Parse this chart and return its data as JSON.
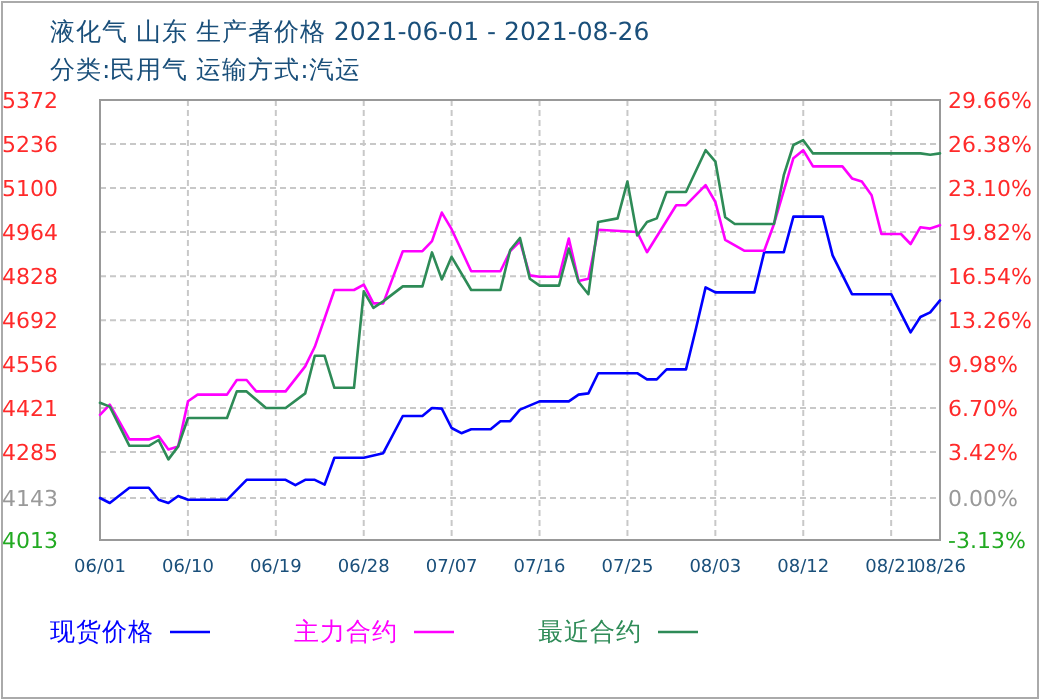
{
  "chart_data": {
    "type": "line",
    "title": "液化气 山东 生产者价格 2021-06-01 - 2021-08-26",
    "subtitle": "分类:民用气 运输方式:汽运",
    "xlim": [
      "2021-06-01",
      "2021-08-26"
    ],
    "xticks": [
      {
        "value": "2021-06-01",
        "label": "06/01"
      },
      {
        "value": "2021-06-10",
        "label": "06/10"
      },
      {
        "value": "2021-06-19",
        "label": "06/19"
      },
      {
        "value": "2021-06-28",
        "label": "06/28"
      },
      {
        "value": "2021-07-07",
        "label": "07/07"
      },
      {
        "value": "2021-07-16",
        "label": "07/16"
      },
      {
        "value": "2021-07-25",
        "label": "07/25"
      },
      {
        "value": "2021-08-03",
        "label": "08/03"
      },
      {
        "value": "2021-08-12",
        "label": "08/12"
      },
      {
        "value": "2021-08-21",
        "label": "08/21"
      },
      {
        "value": "2021-08-26",
        "label": "08/26"
      }
    ],
    "ylim": [
      4013,
      5372
    ],
    "yticks": [
      4013,
      4143,
      4285,
      4421,
      4556,
      4692,
      4828,
      4964,
      5100,
      5236,
      5372
    ],
    "y2lim": [
      -3.13,
      29.66
    ],
    "y2ticks": [
      {
        "value": -3.13,
        "label": "-3.13%"
      },
      {
        "value": 0,
        "label": "0.00%"
      },
      {
        "value": 3.42,
        "label": "3.42%"
      },
      {
        "value": 6.7,
        "label": "6.70%"
      },
      {
        "value": 9.98,
        "label": "9.98%"
      },
      {
        "value": 13.26,
        "label": "13.26%"
      },
      {
        "value": 16.54,
        "label": "16.54%"
      },
      {
        "value": 19.82,
        "label": "19.82%"
      },
      {
        "value": 23.1,
        "label": "23.10%"
      },
      {
        "value": 26.38,
        "label": "26.38%"
      },
      {
        "value": 29.66,
        "label": "29.66%"
      }
    ],
    "grid": true,
    "legend": "bottom",
    "line_style": "solid",
    "marker": "none",
    "series": [
      {
        "name": "现货价格",
        "color": "#0000ff",
        "x": [
          "2021-06-01",
          "2021-06-02",
          "2021-06-04",
          "2021-06-06",
          "2021-06-07",
          "2021-06-08",
          "2021-06-09",
          "2021-06-10",
          "2021-06-14",
          "2021-06-16",
          "2021-06-20",
          "2021-06-21",
          "2021-06-22",
          "2021-06-23",
          "2021-06-24",
          "2021-06-25",
          "2021-06-28",
          "2021-06-30",
          "2021-07-02",
          "2021-07-04",
          "2021-07-05",
          "2021-07-06",
          "2021-07-07",
          "2021-07-08",
          "2021-07-09",
          "2021-07-11",
          "2021-07-12",
          "2021-07-13",
          "2021-07-14",
          "2021-07-16",
          "2021-07-19",
          "2021-07-20",
          "2021-07-21",
          "2021-07-22",
          "2021-07-26",
          "2021-07-27",
          "2021-07-28",
          "2021-07-29",
          "2021-07-31",
          "2021-08-01",
          "2021-08-02",
          "2021-08-03",
          "2021-08-07",
          "2021-08-08",
          "2021-08-10",
          "2021-08-11",
          "2021-08-14",
          "2021-08-15",
          "2021-08-17",
          "2021-08-21",
          "2021-08-23",
          "2021-08-24",
          "2021-08-25",
          "2021-08-26"
        ],
        "values": [
          4143,
          4127,
          4174,
          4174,
          4137,
          4127,
          4149,
          4137,
          4137,
          4199,
          4199,
          4182,
          4199,
          4199,
          4184,
          4267,
          4267,
          4281,
          4396,
          4396,
          4421,
          4419,
          4359,
          4343,
          4355,
          4355,
          4380,
          4380,
          4416,
          4441,
          4441,
          4462,
          4466,
          4528,
          4528,
          4509,
          4509,
          4540,
          4540,
          4664,
          4793,
          4778,
          4778,
          4902,
          4902,
          5012,
          5012,
          4892,
          4772,
          4772,
          4654,
          4702,
          4716,
          4753
        ]
      },
      {
        "name": "主力合约",
        "color": "#ff00ff",
        "x": [
          "2021-06-01",
          "2021-06-02",
          "2021-06-04",
          "2021-06-06",
          "2021-06-07",
          "2021-06-08",
          "2021-06-09",
          "2021-06-10",
          "2021-06-11",
          "2021-06-14",
          "2021-06-15",
          "2021-06-16",
          "2021-06-17",
          "2021-06-20",
          "2021-06-22",
          "2021-06-23",
          "2021-06-25",
          "2021-06-27",
          "2021-06-28",
          "2021-06-29",
          "2021-06-30",
          "2021-07-02",
          "2021-07-04",
          "2021-07-05",
          "2021-07-06",
          "2021-07-07",
          "2021-07-09",
          "2021-07-12",
          "2021-07-13",
          "2021-07-14",
          "2021-07-15",
          "2021-07-16",
          "2021-07-18",
          "2021-07-19",
          "2021-07-20",
          "2021-07-21",
          "2021-07-22",
          "2021-07-26",
          "2021-07-27",
          "2021-07-30",
          "2021-07-31",
          "2021-08-02",
          "2021-08-03",
          "2021-08-04",
          "2021-08-06",
          "2021-08-08",
          "2021-08-09",
          "2021-08-11",
          "2021-08-12",
          "2021-08-13",
          "2021-08-16",
          "2021-08-17",
          "2021-08-18",
          "2021-08-19",
          "2021-08-20",
          "2021-08-22",
          "2021-08-23",
          "2021-08-24",
          "2021-08-25",
          "2021-08-26"
        ],
        "values": [
          4400,
          4431,
          4324,
          4324,
          4334,
          4293,
          4302,
          4442,
          4462,
          4462,
          4507,
          4507,
          4472,
          4472,
          4549,
          4610,
          4785,
          4785,
          4802,
          4744,
          4744,
          4905,
          4905,
          4936,
          5024,
          4973,
          4843,
          4843,
          4905,
          4935,
          4830,
          4826,
          4826,
          4944,
          4813,
          4820,
          4971,
          4964,
          4902,
          5047,
          5047,
          5109,
          5057,
          4940,
          4906,
          4906,
          4989,
          5192,
          5217,
          5167,
          5167,
          5130,
          5120,
          5078,
          4958,
          4958,
          4927,
          4979,
          4975,
          4985
        ]
      },
      {
        "name": "最近合约",
        "color": "#2e8b57",
        "x": [
          "2021-06-01",
          "2021-06-02",
          "2021-06-04",
          "2021-06-06",
          "2021-06-07",
          "2021-06-08",
          "2021-06-09",
          "2021-06-10",
          "2021-06-14",
          "2021-06-15",
          "2021-06-16",
          "2021-06-18",
          "2021-06-20",
          "2021-06-22",
          "2021-06-23",
          "2021-06-24",
          "2021-06-25",
          "2021-06-27",
          "2021-06-28",
          "2021-06-29",
          "2021-06-30",
          "2021-07-02",
          "2021-07-04",
          "2021-07-05",
          "2021-07-06",
          "2021-07-07",
          "2021-07-09",
          "2021-07-12",
          "2021-07-13",
          "2021-07-14",
          "2021-07-15",
          "2021-07-16",
          "2021-07-18",
          "2021-07-19",
          "2021-07-20",
          "2021-07-21",
          "2021-07-22",
          "2021-07-24",
          "2021-07-25",
          "2021-07-26",
          "2021-07-27",
          "2021-07-28",
          "2021-07-29",
          "2021-07-31",
          "2021-08-02",
          "2021-08-03",
          "2021-08-04",
          "2021-08-05",
          "2021-08-09",
          "2021-08-10",
          "2021-08-11",
          "2021-08-12",
          "2021-08-13",
          "2021-08-24",
          "2021-08-25",
          "2021-08-26"
        ],
        "values": [
          4437,
          4425,
          4304,
          4304,
          4322,
          4262,
          4302,
          4390,
          4390,
          4472,
          4472,
          4421,
          4421,
          4466,
          4582,
          4582,
          4483,
          4483,
          4781,
          4730,
          4750,
          4796,
          4796,
          4901,
          4818,
          4888,
          4785,
          4785,
          4909,
          4946,
          4820,
          4799,
          4799,
          4913,
          4810,
          4772,
          4995,
          5006,
          5120,
          4954,
          4995,
          5006,
          5088,
          5088,
          5217,
          5182,
          5010,
          4989,
          4989,
          5140,
          5233,
          5248,
          5207,
          5207,
          5203,
          5207
        ]
      }
    ]
  }
}
